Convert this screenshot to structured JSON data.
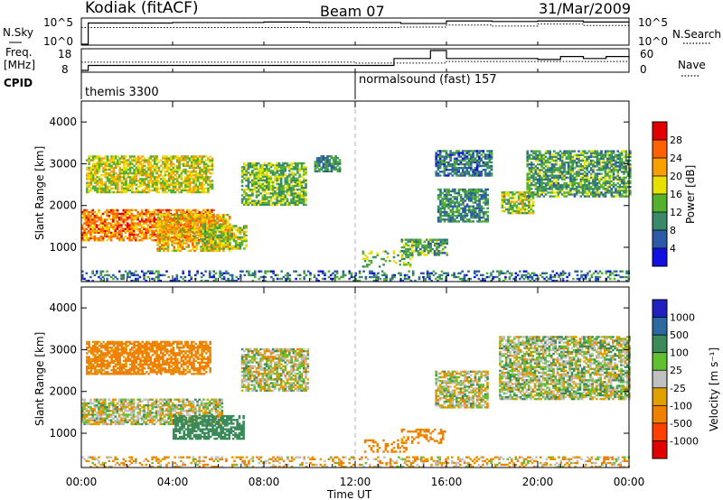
{
  "header": {
    "title": "Kodiak (fitACF)",
    "beam": "Beam 07",
    "date": "31/Mar/2009"
  },
  "panel_nsky": {
    "left_label": "N.Sky",
    "right_label": "N.Search",
    "left_ticks": [
      "10^5",
      "10^0"
    ],
    "right_ticks": [
      "10^5",
      "10^0"
    ]
  },
  "panel_freq": {
    "left_label_1": "Freq.",
    "left_label_2": "[MHz]",
    "right_label": "Nave",
    "left_ticks": [
      "18",
      "8"
    ],
    "right_ticks": [
      "60",
      "0"
    ]
  },
  "cpid": {
    "label": "CPID",
    "modes": [
      {
        "name": "themis 3300",
        "start_hour": 0
      },
      {
        "name": "normalsound (fast) 157",
        "start_hour": 12
      }
    ]
  },
  "x_axis": {
    "label": "Time UT",
    "ticks": [
      "00:00",
      "04:00",
      "08:00",
      "12:00",
      "16:00",
      "20:00",
      "00:00"
    ],
    "range_hours": [
      0,
      24
    ]
  },
  "power_panel": {
    "ylabel": "Slant Range [km]",
    "yticks": [
      "1000",
      "2000",
      "3000",
      "4000"
    ],
    "colorbar_label": "Power [dB]",
    "colorbar_ticks": [
      "4",
      "8",
      "12",
      "16",
      "20",
      "24",
      "28"
    ],
    "colors": [
      "#1010e0",
      "#2a5aa8",
      "#3a8a6a",
      "#55b030",
      "#e8e000",
      "#f7a000",
      "#ff6000",
      "#e00000"
    ]
  },
  "velocity_panel": {
    "ylabel": "Slant Range [km]",
    "yticks": [
      "1000",
      "2000",
      "3000",
      "4000"
    ],
    "colorbar_label": "Velocity [m s⁻¹]",
    "colorbar_ticks": [
      "1000",
      "500",
      "100",
      "25",
      "-25",
      "-100",
      "-500",
      "-1000"
    ],
    "colors": [
      "#2020c0",
      "#2a6aa0",
      "#3a8a5a",
      "#60c030",
      "#c0c0c0",
      "#e0a000",
      "#f08000",
      "#ff4000",
      "#e00000"
    ]
  },
  "chart_data": [
    {
      "type": "line",
      "series": [
        {
          "name": "N.Sky",
          "x_hours": [
            0,
            0.3,
            2,
            4,
            6,
            8,
            10,
            12,
            14,
            16,
            18,
            20,
            22,
            24
          ],
          "y_log10": [
            0,
            4.2,
            4.2,
            4.3,
            4.3,
            4.4,
            4.3,
            4.3,
            4.1,
            4.6,
            4.5,
            4.6,
            4.4,
            4.3
          ]
        },
        {
          "name": "N.Search",
          "x_hours": [
            0,
            2,
            4,
            6,
            8,
            10,
            12,
            14,
            16,
            18,
            20,
            22,
            24
          ],
          "y_log10": [
            3.3,
            3.3,
            3.3,
            3.3,
            3.3,
            3.3,
            3.3,
            3.4,
            3.8,
            3.6,
            4.0,
            3.7,
            3.6
          ]
        }
      ],
      "ylim_log10": [
        0,
        5
      ]
    },
    {
      "type": "line",
      "series": [
        {
          "name": "Freq.",
          "x_hours": [
            0,
            0.3,
            12,
            13.7,
            15.3,
            16,
            18,
            20,
            21,
            22,
            23,
            24
          ],
          "y": [
            8,
            10.5,
            10.5,
            14,
            18,
            14,
            14,
            13.5,
            15,
            14,
            15,
            14
          ]
        },
        {
          "name": "Nave",
          "x_hours": [
            0,
            4,
            8,
            12,
            13,
            16,
            20,
            24
          ],
          "y": [
            25,
            25,
            25,
            22,
            22,
            27,
            27,
            28
          ]
        }
      ],
      "freq_ylim": [
        8,
        18
      ],
      "nave_ylim": [
        0,
        60
      ]
    },
    {
      "type": "heatmap",
      "title": "Power [dB]",
      "xlim_hours": [
        0,
        24
      ],
      "ylim_km": [
        180,
        4500
      ],
      "clim": [
        0,
        30
      ],
      "regions": [
        {
          "t0": 0,
          "t1": 5.8,
          "r0": 1150,
          "r1": 1900,
          "power": 24
        },
        {
          "t0": 3.3,
          "t1": 6.5,
          "r0": 900,
          "r1": 1800,
          "power": 20
        },
        {
          "t0": 5.2,
          "t1": 7.2,
          "r0": 950,
          "r1": 1500,
          "power": 16
        },
        {
          "t0": 0.2,
          "t1": 5.7,
          "r0": 2300,
          "r1": 3200,
          "power": 18
        },
        {
          "t0": 7.0,
          "t1": 9.8,
          "r0": 2000,
          "r1": 3000,
          "power": 14
        },
        {
          "t0": 10.2,
          "t1": 11.3,
          "r0": 2800,
          "r1": 3200,
          "power": 10
        },
        {
          "t0": 12.3,
          "t1": 14.5,
          "r0": 520,
          "r1": 900,
          "power": 14
        },
        {
          "t0": 14.0,
          "t1": 16.0,
          "r0": 800,
          "r1": 1200,
          "power": 12
        },
        {
          "t0": 15.6,
          "t1": 17.8,
          "r0": 1600,
          "r1": 2400,
          "power": 10
        },
        {
          "t0": 15.5,
          "t1": 18.0,
          "r0": 2700,
          "r1": 3300,
          "power": 8
        },
        {
          "t0": 18.4,
          "t1": 19.8,
          "r0": 1800,
          "r1": 2300,
          "power": 16
        },
        {
          "t0": 19.5,
          "t1": 24.0,
          "r0": 2200,
          "r1": 3300,
          "power": 12
        },
        {
          "t0": 0,
          "t1": 24,
          "r0": 180,
          "r1": 450,
          "power": 8
        }
      ]
    },
    {
      "type": "heatmap",
      "title": "Velocity [m s⁻¹]",
      "xlim_hours": [
        0,
        24
      ],
      "ylim_km": [
        180,
        4500
      ],
      "clim": [
        -1000,
        1000
      ],
      "regions": [
        {
          "t0": 0,
          "t1": 6.2,
          "r0": 1200,
          "r1": 1800,
          "velocity": 0
        },
        {
          "t0": 4.0,
          "t1": 7.1,
          "r0": 850,
          "r1": 1400,
          "velocity": 150
        },
        {
          "t0": 0.2,
          "t1": 5.6,
          "r0": 2400,
          "r1": 3200,
          "velocity": -120
        },
        {
          "t0": 7.0,
          "t1": 9.9,
          "r0": 2000,
          "r1": 3000,
          "velocity": 0
        },
        {
          "t0": 12.3,
          "t1": 14.2,
          "r0": 540,
          "r1": 850,
          "velocity": -150
        },
        {
          "t0": 14.0,
          "t1": 16.0,
          "r0": 750,
          "r1": 1100,
          "velocity": -120
        },
        {
          "t0": 15.5,
          "t1": 17.8,
          "r0": 1600,
          "r1": 2500,
          "velocity": 0
        },
        {
          "t0": 18.3,
          "t1": 24.0,
          "r0": 1800,
          "r1": 3300,
          "velocity": 15
        },
        {
          "t0": 0,
          "t1": 24,
          "r0": 180,
          "r1": 420,
          "velocity": -40
        }
      ]
    }
  ]
}
